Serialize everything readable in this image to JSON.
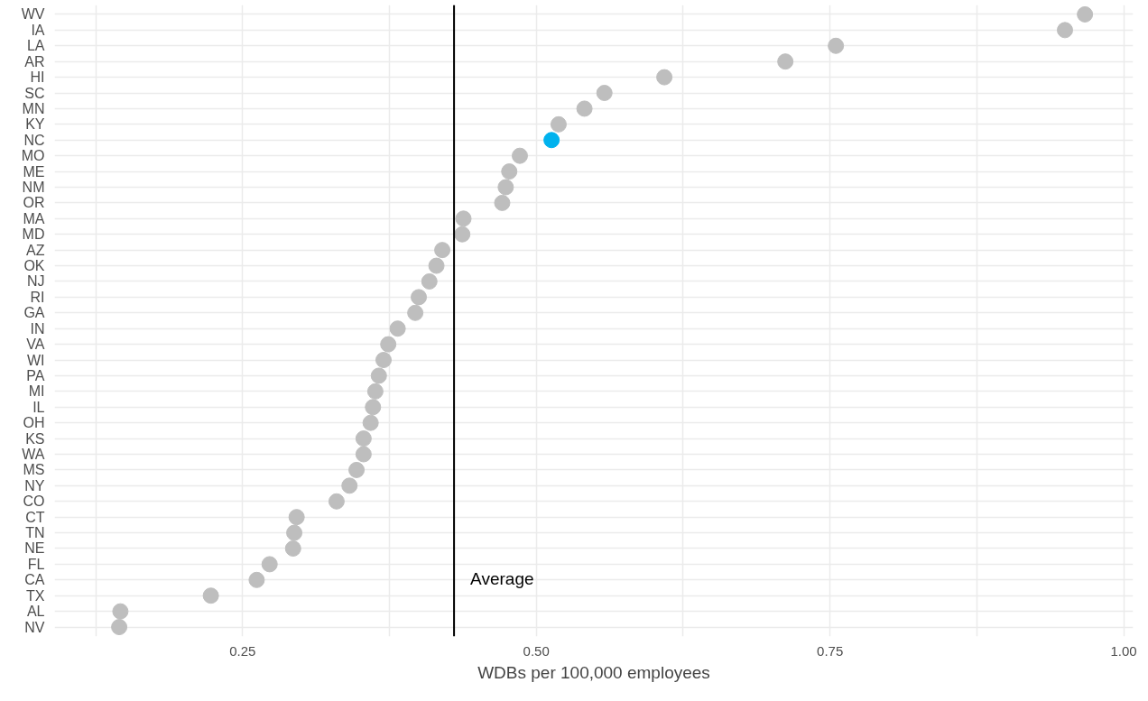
{
  "chart_data": {
    "type": "scatter",
    "orientation": "horizontal",
    "xlabel": "WDBs per 100,000 employees",
    "categories": [
      "WV",
      "IA",
      "LA",
      "AR",
      "HI",
      "SC",
      "MN",
      "KY",
      "NC",
      "MO",
      "ME",
      "NM",
      "OR",
      "MA",
      "MD",
      "AZ",
      "OK",
      "NJ",
      "RI",
      "GA",
      "IN",
      "VA",
      "WI",
      "PA",
      "MI",
      "IL",
      "OH",
      "KS",
      "WA",
      "MS",
      "NY",
      "CO",
      "CT",
      "TN",
      "NE",
      "FL",
      "CA",
      "TX",
      "AL",
      "NV"
    ],
    "values": [
      0.967,
      0.95,
      0.755,
      0.712,
      0.609,
      0.558,
      0.541,
      0.519,
      0.513,
      0.486,
      0.477,
      0.474,
      0.471,
      0.438,
      0.437,
      0.42,
      0.415,
      0.409,
      0.4,
      0.397,
      0.382,
      0.374,
      0.37,
      0.366,
      0.363,
      0.361,
      0.359,
      0.353,
      0.353,
      0.347,
      0.341,
      0.33,
      0.296,
      0.294,
      0.293,
      0.273,
      0.262,
      0.223,
      0.146,
      0.145
    ],
    "colors": [
      "#bebebe",
      "#bebebe",
      "#bebebe",
      "#bebebe",
      "#bebebe",
      "#bebebe",
      "#bebebe",
      "#bebebe",
      "#00b2ee",
      "#bebebe",
      "#bebebe",
      "#bebebe",
      "#bebebe",
      "#bebebe",
      "#bebebe",
      "#bebebe",
      "#bebebe",
      "#bebebe",
      "#bebebe",
      "#bebebe",
      "#bebebe",
      "#bebebe",
      "#bebebe",
      "#bebebe",
      "#bebebe",
      "#bebebe",
      "#bebebe",
      "#bebebe",
      "#bebebe",
      "#bebebe",
      "#bebebe",
      "#bebebe",
      "#bebebe",
      "#bebebe",
      "#bebebe",
      "#bebebe",
      "#bebebe",
      "#bebebe",
      "#bebebe",
      "#bebebe"
    ],
    "xlim": [
      0.09,
      1.008
    ],
    "xticks": [
      {
        "value": 0.125,
        "label": null
      },
      {
        "value": 0.25,
        "label": "0.25"
      },
      {
        "value": 0.375,
        "label": null
      },
      {
        "value": 0.5,
        "label": "0.50"
      },
      {
        "value": 0.625,
        "label": null
      },
      {
        "value": 0.75,
        "label": "0.75"
      },
      {
        "value": 0.875,
        "label": null
      },
      {
        "value": 1.0,
        "label": "1.00"
      }
    ],
    "ref_lines": [
      {
        "axis": "x",
        "value": 0.43,
        "label": "Average",
        "color": "#000000"
      }
    ],
    "grid": true,
    "marker": "circle"
  }
}
